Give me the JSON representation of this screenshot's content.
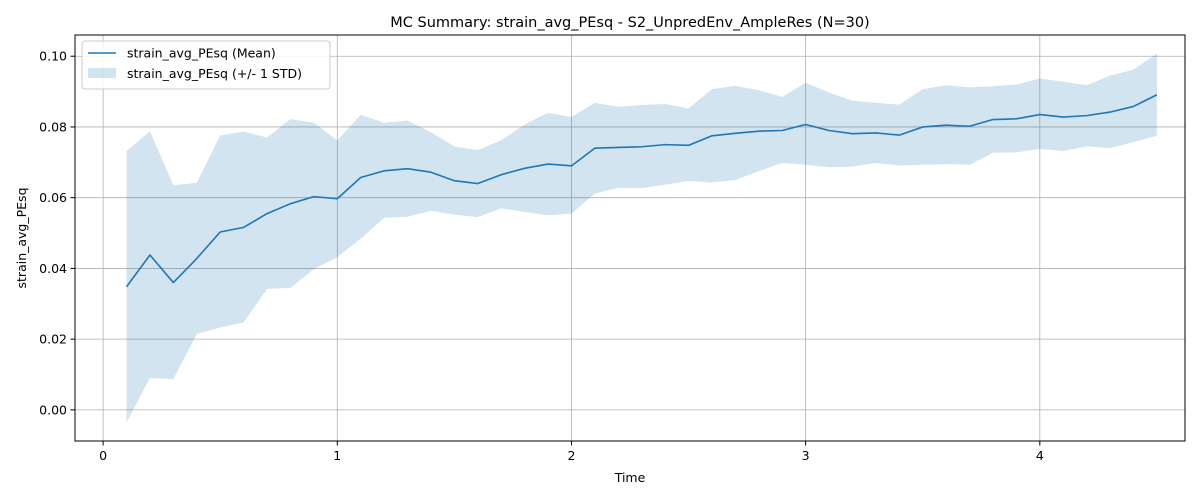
{
  "chart_data": {
    "type": "line",
    "title": "MC Summary: strain_avg_PEsq - S2_UnpredEnv_AmpleRes (N=30)",
    "xlabel": "Time",
    "ylabel": "strain_avg_PEsq",
    "xlim": [
      -0.12,
      4.62
    ],
    "ylim": [
      -0.0088,
      0.106
    ],
    "xticks": [
      0,
      1,
      2,
      3,
      4
    ],
    "xtick_labels": [
      "0",
      "1",
      "2",
      "3",
      "4"
    ],
    "yticks": [
      0.0,
      0.02,
      0.04,
      0.06,
      0.08,
      0.1
    ],
    "ytick_labels": [
      "0.00",
      "0.02",
      "0.04",
      "0.06",
      "0.08",
      "0.10"
    ],
    "grid": true,
    "legend_position": "top-left",
    "colors": {
      "line": "#1f77b4",
      "band": "#1f77b4",
      "grid": "#b0b0b0"
    },
    "x": [
      0.1,
      0.2,
      0.3,
      0.4,
      0.5,
      0.6,
      0.7,
      0.8,
      0.9,
      1.0,
      1.1,
      1.2,
      1.3,
      1.4,
      1.5,
      1.6,
      1.7,
      1.8,
      1.9,
      2.0,
      2.1,
      2.2,
      2.3,
      2.4,
      2.5,
      2.6,
      2.7,
      2.8,
      2.9,
      3.0,
      3.1,
      3.2,
      3.3,
      3.4,
      3.5,
      3.6,
      3.7,
      3.8,
      3.9,
      4.0,
      4.1,
      4.2,
      4.3,
      4.4,
      4.5
    ],
    "series": [
      {
        "name": "strain_avg_PEsq (Mean)",
        "kind": "line",
        "values": [
          0.0348,
          0.0438,
          0.036,
          0.0428,
          0.0503,
          0.0516,
          0.0555,
          0.0583,
          0.0603,
          0.0597,
          0.0657,
          0.0676,
          0.0682,
          0.0672,
          0.0648,
          0.064,
          0.0665,
          0.0683,
          0.0695,
          0.069,
          0.074,
          0.0742,
          0.0744,
          0.075,
          0.0748,
          0.0775,
          0.0782,
          0.0788,
          0.079,
          0.0807,
          0.079,
          0.0781,
          0.0783,
          0.0777,
          0.08,
          0.0805,
          0.0802,
          0.0821,
          0.0823,
          0.0835,
          0.0828,
          0.0832,
          0.0842,
          0.0858,
          0.0891
        ]
      },
      {
        "name": "strain_avg_PEsq (+/- 1 STD)",
        "kind": "band",
        "upper": [
          0.0732,
          0.0788,
          0.0635,
          0.0642,
          0.0776,
          0.0787,
          0.077,
          0.0822,
          0.0812,
          0.0762,
          0.0834,
          0.0812,
          0.0818,
          0.0785,
          0.0745,
          0.0735,
          0.0762,
          0.0807,
          0.084,
          0.0828,
          0.0868,
          0.0857,
          0.0862,
          0.0865,
          0.0852,
          0.0907,
          0.0916,
          0.0904,
          0.0885,
          0.0925,
          0.0897,
          0.0874,
          0.0868,
          0.0863,
          0.0907,
          0.0918,
          0.0912,
          0.0915,
          0.092,
          0.0937,
          0.0928,
          0.0918,
          0.0945,
          0.0962,
          0.1008
        ],
        "lower": [
          -0.0035,
          0.009,
          0.0087,
          0.0215,
          0.0233,
          0.0247,
          0.0342,
          0.0345,
          0.0398,
          0.0432,
          0.0484,
          0.0543,
          0.0546,
          0.0563,
          0.0552,
          0.0545,
          0.057,
          0.056,
          0.055,
          0.0555,
          0.0612,
          0.0628,
          0.0627,
          0.0637,
          0.0647,
          0.0643,
          0.065,
          0.0675,
          0.0698,
          0.0693,
          0.0686,
          0.0688,
          0.0698,
          0.0691,
          0.0693,
          0.0695,
          0.0693,
          0.0727,
          0.0728,
          0.0738,
          0.0732,
          0.0745,
          0.074,
          0.0757,
          0.0775
        ]
      }
    ]
  }
}
